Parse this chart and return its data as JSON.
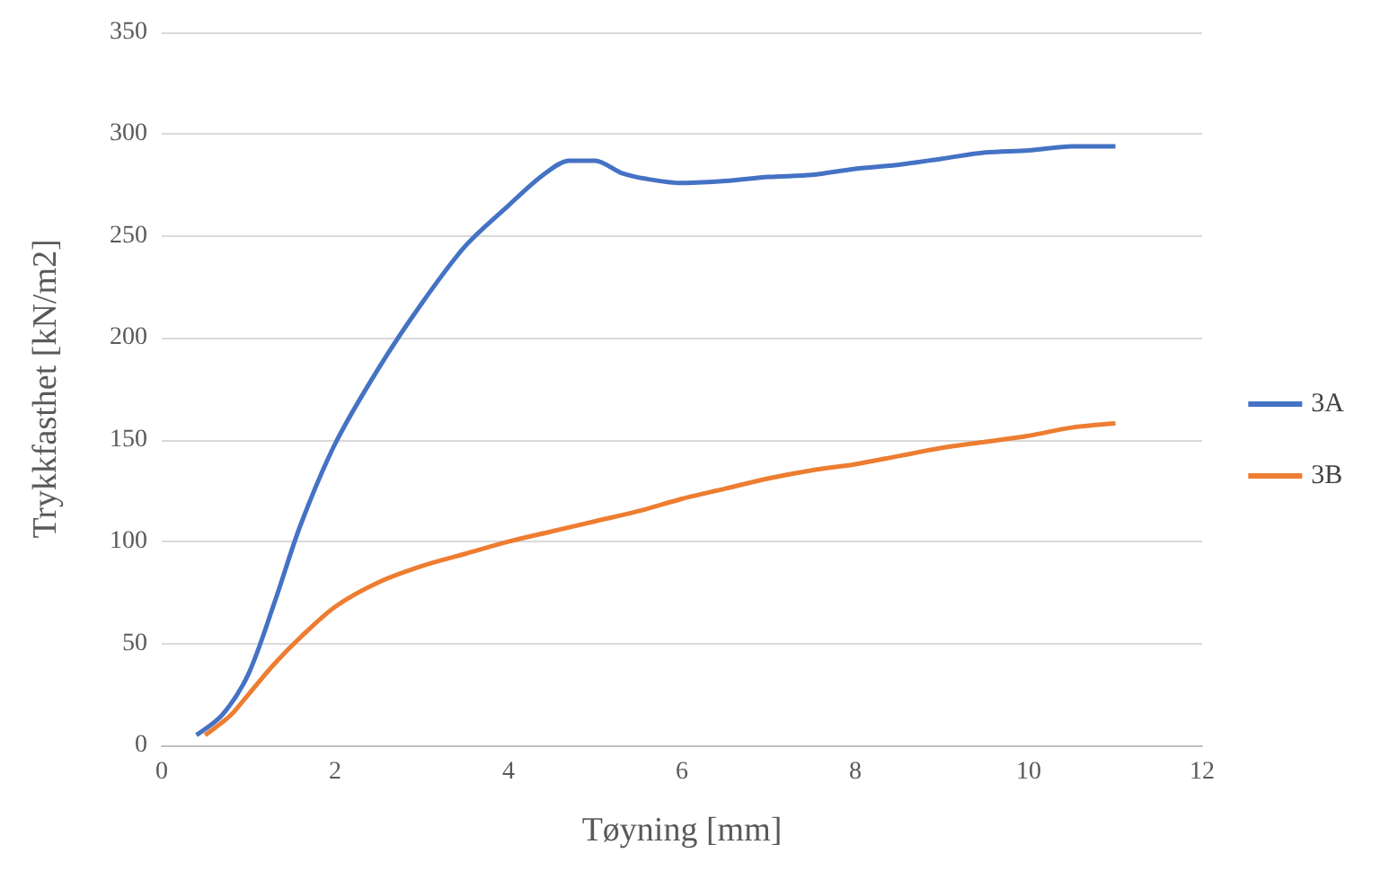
{
  "chart_data": {
    "type": "line",
    "xlabel": "Tøyning [mm]",
    "ylabel": "Trykkfasthet [kN/m2]",
    "series": [
      {
        "name": "3A",
        "color": "#4472c4",
        "x": [
          0.4,
          0.7,
          1,
          1.3,
          1.6,
          2,
          2.5,
          3,
          3.5,
          4,
          4.4,
          4.7,
          5,
          5.3,
          5.6,
          6,
          6.5,
          7,
          7.5,
          8,
          8.5,
          9,
          9.5,
          10,
          10.5,
          11
        ],
        "values": [
          5,
          15,
          35,
          70,
          108,
          148,
          185,
          217,
          245,
          265,
          280,
          287,
          287,
          281,
          278,
          276,
          277,
          279,
          280,
          283,
          285,
          288,
          291,
          292,
          294,
          294
        ]
      },
      {
        "name": "3B",
        "color": "#ed7d31",
        "x": [
          0.5,
          0.8,
          1,
          1.3,
          1.6,
          2,
          2.5,
          3,
          3.5,
          4,
          4.5,
          5,
          5.5,
          6,
          6.5,
          7,
          7.5,
          8,
          8.5,
          9,
          9.5,
          10,
          10.5,
          11
        ],
        "values": [
          5,
          15,
          25,
          40,
          53,
          68,
          80,
          88,
          94,
          100,
          105,
          110,
          115,
          121,
          126,
          131,
          135,
          138,
          142,
          146,
          149,
          152,
          156,
          158
        ]
      }
    ],
    "xlim": [
      0,
      12
    ],
    "xticks": [
      0,
      2,
      4,
      6,
      8,
      10,
      12
    ],
    "ylim": [
      0,
      350
    ],
    "yticks": [
      0,
      50,
      100,
      150,
      200,
      250,
      300,
      350
    ],
    "grid": "y",
    "legend": "right",
    "marker": "none",
    "line_style": "solid"
  }
}
